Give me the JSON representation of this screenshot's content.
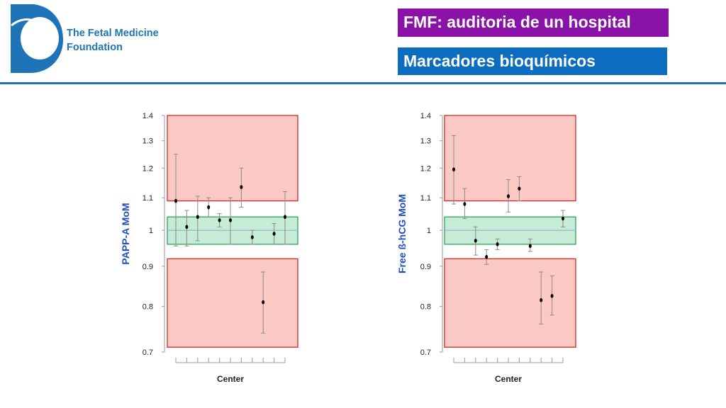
{
  "header": {
    "org_line1": "The Fetal Medicine",
    "org_line2": "Foundation",
    "title": "FMF: auditoria de un hospital",
    "subtitle": "Marcadores bioquímicos"
  },
  "colors": {
    "brand_blue": "#1f73b7",
    "title_bg": "#8b12a8",
    "subtitle_bg": "#0b6cc0",
    "out_of_range_fill": "#fbc9c3",
    "out_of_range_stroke": "#d02a25",
    "in_range_fill": "#c6ebd6",
    "in_range_stroke": "#2aa358"
  },
  "icons": {
    "logo": "fmf-logo-icon"
  },
  "chart_data": [
    {
      "type": "scatter",
      "title": "",
      "xlabel": "Center",
      "ylabel": "PAPP-A MoM",
      "ylim": [
        0.7,
        1.4
      ],
      "y_scale": "log",
      "yticks": [
        0.7,
        0.8,
        0.9,
        1,
        1.1,
        1.2,
        1.3,
        1.4
      ],
      "ytick_labels": [
        "0.7",
        "0.8",
        "0.9",
        "1",
        "1.1",
        "1.2",
        "1.3",
        "1.4"
      ],
      "x_count": 11,
      "reference_line": 1,
      "bands": [
        {
          "kind": "high",
          "from": 1.09,
          "to": 1.4
        },
        {
          "kind": "normal",
          "from": 0.96,
          "to": 1.04
        },
        {
          "kind": "low",
          "from": 0.71,
          "to": 0.92
        }
      ],
      "points": [
        {
          "x": 1,
          "y": 1.09,
          "low": 0.955,
          "high": 1.25
        },
        {
          "x": 2,
          "y": 1.01,
          "low": 0.955,
          "high": 1.06
        },
        {
          "x": 3,
          "y": 1.04,
          "low": 0.97,
          "high": 1.105
        },
        {
          "x": 4,
          "y": 1.07,
          "low": 1.04,
          "high": 1.1
        },
        {
          "x": 5,
          "y": 1.03,
          "low": 1.01,
          "high": 1.05
        },
        {
          "x": 6,
          "y": 1.03,
          "low": 0.96,
          "high": 1.1
        },
        {
          "x": 7,
          "y": 1.135,
          "low": 1.07,
          "high": 1.2
        },
        {
          "x": 8,
          "y": 0.98,
          "low": 0.96,
          "high": 1.0
        },
        {
          "x": 9,
          "y": 0.81,
          "low": 0.74,
          "high": 0.885
        },
        {
          "x": 10,
          "y": 0.99,
          "low": 0.96,
          "high": 1.02
        },
        {
          "x": 11,
          "y": 1.04,
          "low": 0.96,
          "high": 1.12
        }
      ]
    },
    {
      "type": "scatter",
      "title": "",
      "xlabel": "Center",
      "ylabel": "Free ß-hCG MoM",
      "ylim": [
        0.7,
        1.4
      ],
      "y_scale": "log",
      "yticks": [
        0.7,
        0.8,
        0.9,
        1,
        1.1,
        1.2,
        1.3,
        1.4
      ],
      "ytick_labels": [
        "0.7",
        "0.8",
        "0.9",
        "1",
        "1.1",
        "1.2",
        "1.3",
        "1.4"
      ],
      "x_count": 11,
      "reference_line": 1,
      "bands": [
        {
          "kind": "high",
          "from": 1.09,
          "to": 1.4
        },
        {
          "kind": "normal",
          "from": 0.96,
          "to": 1.04
        },
        {
          "kind": "low",
          "from": 0.71,
          "to": 0.92
        }
      ],
      "points": [
        {
          "x": 1,
          "y": 1.195,
          "low": 1.08,
          "high": 1.32
        },
        {
          "x": 2,
          "y": 1.08,
          "low": 1.035,
          "high": 1.13
        },
        {
          "x": 3,
          "y": 0.97,
          "low": 0.93,
          "high": 1.01
        },
        {
          "x": 4,
          "y": 0.925,
          "low": 0.905,
          "high": 0.945
        },
        {
          "x": 5,
          "y": 0.96,
          "low": 0.945,
          "high": 0.975
        },
        {
          "x": 6,
          "y": 1.105,
          "low": 1.055,
          "high": 1.16
        },
        {
          "x": 7,
          "y": 1.13,
          "low": 1.09,
          "high": 1.17
        },
        {
          "x": 8,
          "y": 0.955,
          "low": 0.94,
          "high": 0.975
        },
        {
          "x": 9,
          "y": 0.815,
          "low": 0.76,
          "high": 0.885
        },
        {
          "x": 10,
          "y": 0.825,
          "low": 0.78,
          "high": 0.875
        },
        {
          "x": 11,
          "y": 1.035,
          "low": 1.01,
          "high": 1.06
        }
      ]
    }
  ]
}
